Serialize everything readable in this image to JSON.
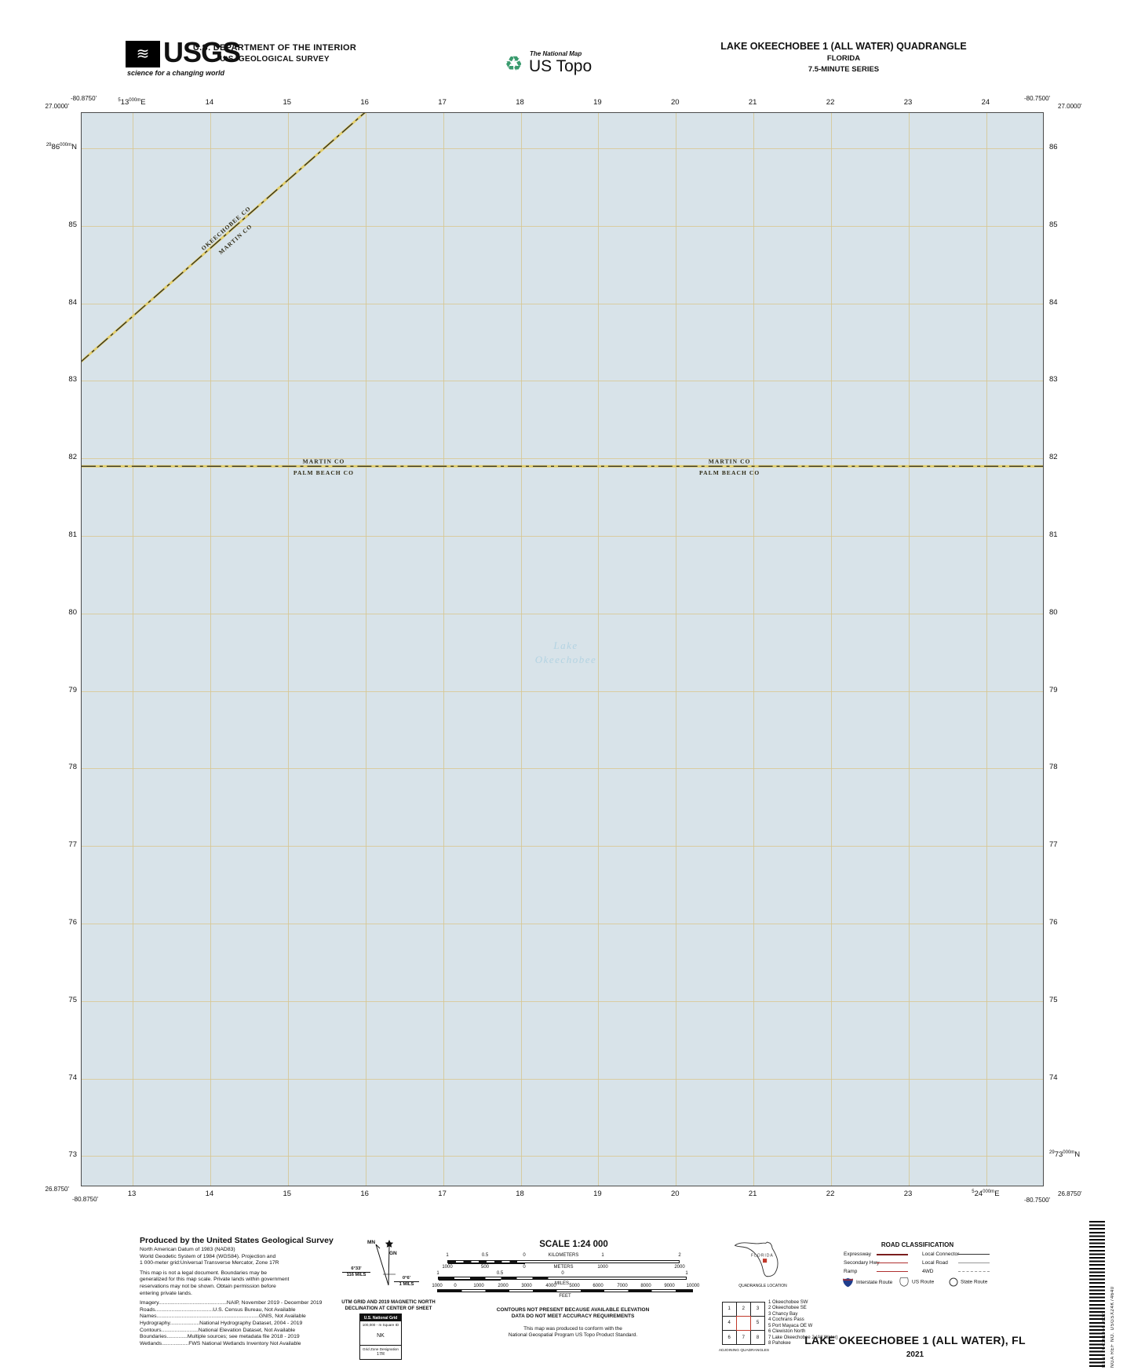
{
  "header": {
    "usgs": {
      "acronym": "USGS",
      "tagline": "science for a changing world",
      "waves": "≋"
    },
    "dept1": "U.S. DEPARTMENT OF THE INTERIOR",
    "dept2": "U.S. GEOLOGICAL SURVEY",
    "natmap": "The National Map",
    "ustopo": "US Topo",
    "recycle_icon": "♻",
    "quad": "LAKE OKEECHOBEE 1 (ALL WATER) QUADRANGLE",
    "state": "FLORIDA",
    "series": "7.5-MINUTE SERIES"
  },
  "map": {
    "corners": {
      "tl_lat": "27.0000'",
      "tl_lon": "-80.8750'",
      "tr_lat": "27.0000'",
      "tr_lon": "-80.7500'",
      "bl_lat": "26.8750'",
      "bl_lon": "-80.8750'",
      "br_lat": "26.8750'",
      "br_lon": "-80.7500'"
    },
    "eastings": [
      "13",
      "14",
      "15",
      "16",
      "17",
      "18",
      "19",
      "20",
      "21",
      "22",
      "23",
      "24"
    ],
    "northings": [
      "86",
      "85",
      "84",
      "83",
      "82",
      "81",
      "80",
      "79",
      "78",
      "77",
      "76",
      "75",
      "74",
      "73"
    ],
    "easting_prefix": "5",
    "northing_prefix": "29",
    "grid_suffix": "000m",
    "easting_unit": "E",
    "northing_unit": "N",
    "county_diagonal": {
      "above": "OKEECHOBEE CO",
      "below": "MARTIN CO"
    },
    "county_horizontal": {
      "above": "MARTIN CO",
      "below": "PALM BEACH CO"
    },
    "lake_line1": "Lake",
    "lake_line2": "Okeechobee"
  },
  "footer": {
    "credits": {
      "heading": "Produced by the United States Geological Survey",
      "datum_lines": [
        "North American Datum of 1983 (NAD83)",
        "World Geodetic System of 1984 (WGS84).  Projection and",
        "1 000-meter grid:Universal Transverse Mercator, Zone 17R"
      ],
      "legal_lines": [
        "This map is not a legal document. Boundaries may be",
        "generalized for this map scale. Private lands within government",
        "reservations may not be shown. Obtain permission before",
        "entering private lands."
      ],
      "source_lines": [
        "Imagery..............................................NAIP, November 2019 - December 2019",
        "Roads.......................................U.S.  Census  Bureau,  Not  Available",
        "Names.....................................................................GNIS,  Not  Available",
        "Hydrography....................National  Hydrography  Dataset,  2004  -  2019",
        "Contours.........................National  Elevation  Dataset,  Not  Available",
        "Boundaries..............Multiple  sources;  see  metadata  file  2018  -  2019",
        "Wetlands..................FWS  National  Wetlands  Inventory  Not  Available"
      ]
    },
    "declination": {
      "mn": "MN",
      "gn": "GN",
      "mn_deg": "6°33'",
      "mn_mils": "116 MILS",
      "gn_deg": "0°6'",
      "gn_mils": "1 MILS",
      "caption1": "UTM GRID AND 2019 MAGNETIC NORTH",
      "caption2": "DECLINATION AT CENTER OF SHEET"
    },
    "usng": {
      "title": "U.S. National Grid",
      "sub1": "100,000 - m Square ID",
      "square": "NK",
      "sub2": "Grid Zone Designation",
      "zone": "17R"
    },
    "scale": {
      "title": "SCALE 1:24 000",
      "km_labels": [
        "1",
        "0.5",
        "0",
        "KILOMETERS",
        "1",
        "2"
      ],
      "m_labels": [
        "1000",
        "500",
        "0",
        "METERS",
        "1000",
        "2000"
      ],
      "mi_labels": [
        "1",
        "0.5",
        "0",
        "1"
      ],
      "mi_caption": "MILES",
      "ft_labels": [
        "1000",
        "0",
        "1000",
        "2000",
        "3000",
        "4000",
        "5000",
        "6000",
        "7000",
        "8000",
        "9000",
        "10000"
      ],
      "ft_caption": "FEET"
    },
    "notes": {
      "contours1": "CONTOURS NOT PRESENT BECAUSE AVAILABLE ELEVATION",
      "contours2": "DATA DO NOT MEET ACCURACY REQUIREMENTS",
      "standard1": "This map was produced to conform with the",
      "standard2": "National Geospatial Program US Topo Product Standard."
    },
    "location": {
      "state_label": "FLORIDA",
      "caption": "QUADRANGLE LOCATION"
    },
    "adjoining": {
      "caption": "ADJOINING QUADRANGLES",
      "cells": [
        "1",
        "2",
        "3",
        "4",
        "",
        "5",
        "6",
        "7",
        "8"
      ],
      "list": [
        "1 Okeechobee SW",
        "2 Okeechobee SE",
        "3 Chancy Bay",
        "4 Cochrans Pass",
        "5 Port Mayaca OE W",
        "6 Clewiston North",
        "7 Lake Okeechobee 2 (All Water)",
        "8 Pahokee"
      ]
    },
    "roads": {
      "title": "ROAD CLASSIFICATION",
      "rows": [
        {
          "label": "Expressway",
          "style": "expressway"
        },
        {
          "label": "Secondary Hwy",
          "style": "secondary"
        },
        {
          "label": "Ramp",
          "style": "ramp"
        },
        {
          "label": "Local Connector",
          "style": "connector"
        },
        {
          "label": "Local Road",
          "style": "local"
        },
        {
          "label": "4WD",
          "style": "fourwd"
        }
      ],
      "shields": [
        {
          "label": "Interstate Route",
          "type": "interstate"
        },
        {
          "label": "US Route",
          "type": "us"
        },
        {
          "label": "State Route",
          "type": "state"
        }
      ]
    },
    "title_block": {
      "title": "LAKE OKEECHOBEE 1 (ALL WATER),  FL",
      "year": "2021"
    },
    "barcode": {
      "nsn_label": "NSN.",
      "nsn_value": "7643614607602",
      "ref_label": "NGA REF NO.",
      "ref_value": "USGSX24K74640"
    }
  },
  "colors": {
    "water": "#d8e3e9",
    "grid": "#d5c48e",
    "county_casing": "#e3cf6e",
    "county_ink": "#2b2b1f",
    "lake_label": "#b3d3e2",
    "quad_red": "#c0392b"
  }
}
